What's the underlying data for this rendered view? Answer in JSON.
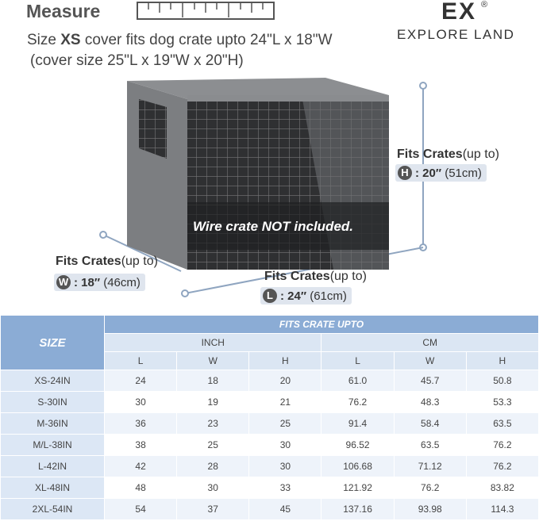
{
  "header": {
    "title": "Measure",
    "brand_mark": "EX",
    "brand_registered": "®",
    "brand_name": "EXPLORE LAND"
  },
  "subtitle": {
    "prefix": "Size ",
    "size": "XS",
    "suffix": " cover fits dog crate upto 24\"L x 18\"W",
    "line2": "(cover size 25\"L x 19\"W x 20\"H)"
  },
  "image": {
    "caption": "Wire crate NOT included."
  },
  "dimensions": [
    {
      "heading": "Fits Crates",
      "heading_note": "(up to)",
      "letter": "H",
      "value": ": 20″",
      "metric": "(51cm)"
    },
    {
      "heading": "Fits Crates",
      "heading_note": "(up to)",
      "letter": "W",
      "value": ": 18″",
      "metric": "(46cm)"
    },
    {
      "heading": "Fits Crates",
      "heading_note": "(up to)",
      "letter": "L",
      "value": ": 24″",
      "metric": "(61cm)"
    }
  ],
  "table": {
    "size_header": "SIZE",
    "group_header": "FITS CRATE UPTO",
    "units": [
      "INCH",
      "CM"
    ],
    "columns": [
      "L",
      "W",
      "H",
      "L",
      "W",
      "H"
    ],
    "rows": [
      [
        "XS-24IN",
        "24",
        "18",
        "20",
        "61.0",
        "45.7",
        "50.8"
      ],
      [
        "S-30IN",
        "30",
        "19",
        "21",
        "76.2",
        "48.3",
        "53.3"
      ],
      [
        "M-36IN",
        "36",
        "23",
        "25",
        "91.4",
        "58.4",
        "63.5"
      ],
      [
        "M/L-38IN",
        "38",
        "25",
        "30",
        "96.52",
        "63.5",
        "76.2"
      ],
      [
        "L-42IN",
        "42",
        "28",
        "30",
        "106.68",
        "71.12",
        "76.2"
      ],
      [
        "XL-48IN",
        "48",
        "30",
        "33",
        "121.92",
        "76.2",
        "83.82"
      ],
      [
        "2XL-54IN",
        "54",
        "37",
        "45",
        "137.16",
        "93.98",
        "114.3"
      ]
    ]
  }
}
